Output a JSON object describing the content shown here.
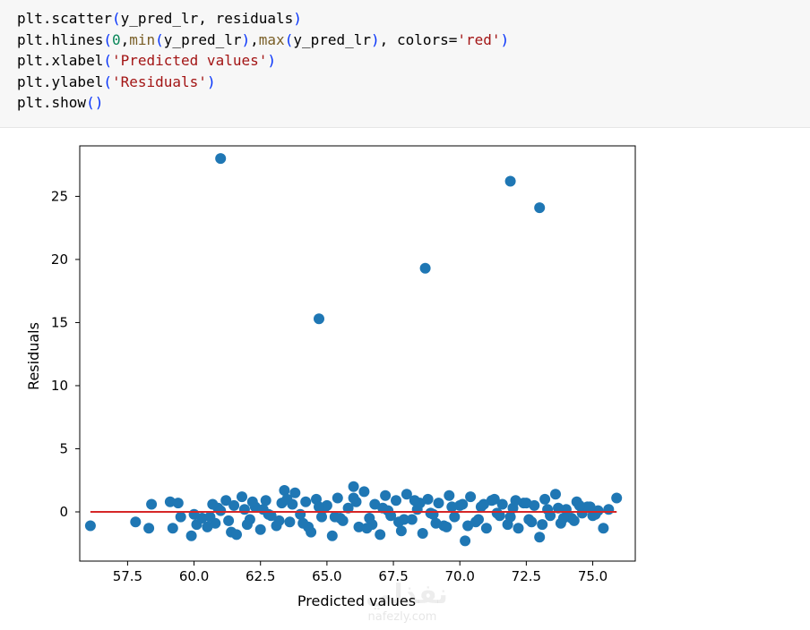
{
  "code_lines": [
    [
      {
        "t": "plt.scatter",
        "c": "fn"
      },
      {
        "t": "(",
        "c": "par"
      },
      {
        "t": "y_pred_lr, residuals",
        "c": "fn"
      },
      {
        "t": ")",
        "c": "par"
      }
    ],
    [
      {
        "t": "plt.hlines",
        "c": "fn"
      },
      {
        "t": "(",
        "c": "par"
      },
      {
        "t": "0",
        "c": "num"
      },
      {
        "t": ",",
        "c": "fn"
      },
      {
        "t": "min",
        "c": "bi"
      },
      {
        "t": "(",
        "c": "par"
      },
      {
        "t": "y_pred_lr",
        "c": "fn"
      },
      {
        "t": ")",
        "c": "par"
      },
      {
        "t": ",",
        "c": "fn"
      },
      {
        "t": "max",
        "c": "bi"
      },
      {
        "t": "(",
        "c": "par"
      },
      {
        "t": "y_pred_lr",
        "c": "fn"
      },
      {
        "t": ")",
        "c": "par"
      },
      {
        "t": ", colors=",
        "c": "fn"
      },
      {
        "t": "'red'",
        "c": "str"
      },
      {
        "t": ")",
        "c": "par"
      }
    ],
    [
      {
        "t": "plt.xlabel",
        "c": "fn"
      },
      {
        "t": "(",
        "c": "par"
      },
      {
        "t": "'Predicted values'",
        "c": "str"
      },
      {
        "t": ")",
        "c": "par"
      }
    ],
    [
      {
        "t": "plt.ylabel",
        "c": "fn"
      },
      {
        "t": "(",
        "c": "par"
      },
      {
        "t": "'Residuals'",
        "c": "str"
      },
      {
        "t": ")",
        "c": "par"
      }
    ],
    [
      {
        "t": "plt.show",
        "c": "fn"
      },
      {
        "t": "()",
        "c": "par"
      }
    ]
  ],
  "colors": {
    "points": "#1f77b4",
    "hline": "#d62728",
    "axis": "#000000",
    "code_bg": "#f7f7f7"
  },
  "watermark": {
    "arabic": "نفذلي",
    "latin": "nafezly.com"
  },
  "chart_data": {
    "type": "scatter",
    "xlabel": "Predicted values",
    "ylabel": "Residuals",
    "xlim": [
      55.7,
      76.6
    ],
    "ylim": [
      -3.9,
      29.0
    ],
    "xticks": [
      57.5,
      60.0,
      62.5,
      65.0,
      67.5,
      70.0,
      72.5,
      75.0
    ],
    "xtick_labels": [
      "57.5",
      "60.0",
      "62.5",
      "65.0",
      "67.5",
      "70.0",
      "72.5",
      "75.0"
    ],
    "yticks": [
      0,
      5,
      10,
      15,
      20,
      25
    ],
    "ytick_labels": [
      "0",
      "5",
      "10",
      "15",
      "20",
      "25"
    ],
    "grid": false,
    "hline": {
      "y": 0,
      "xmin": 56.1,
      "xmax": 75.9,
      "color": "red"
    },
    "series": [
      {
        "x": [
          56.1,
          57.8,
          58.3,
          58.4,
          59.1,
          59.2,
          59.4,
          59.5,
          59.9,
          60.0,
          60.1,
          60.3,
          60.5,
          60.8,
          60.9,
          61.0,
          61.2,
          61.4,
          61.6,
          61.8,
          61.9,
          62.1,
          62.3,
          62.5,
          62.7,
          62.9,
          63.1,
          63.3,
          63.4,
          63.6,
          63.8,
          64.0,
          64.2,
          64.4,
          64.6,
          64.8,
          65.0,
          65.2,
          65.4,
          65.6,
          65.8,
          66.0,
          66.2,
          66.4,
          66.6,
          66.8,
          67.0,
          67.2,
          67.4,
          67.6,
          67.8,
          68.0,
          68.2,
          68.4,
          68.6,
          68.8,
          69.0,
          69.2,
          69.4,
          69.6,
          69.8,
          70.0,
          70.2,
          70.4,
          70.6,
          70.8,
          71.0,
          71.2,
          71.4,
          71.6,
          71.8,
          72.0,
          72.2,
          72.4,
          72.6,
          72.8,
          73.0,
          73.2,
          73.4,
          73.6,
          73.8,
          74.0,
          74.2,
          74.4,
          74.6,
          74.8,
          75.0,
          75.2,
          75.4,
          75.6,
          75.9,
          61.0,
          64.7,
          68.7,
          71.9,
          73.0,
          60.6,
          61.5,
          62.0,
          62.6,
          63.2,
          63.7,
          64.3,
          64.9,
          65.5,
          66.1,
          66.7,
          67.3,
          67.9,
          68.5,
          69.1,
          69.7,
          70.3,
          70.9,
          71.5,
          72.1,
          72.7,
          73.3,
          73.9,
          74.5,
          75.1,
          60.7,
          61.3,
          62.2,
          62.8,
          63.5,
          64.1,
          64.7,
          65.3,
          66.0,
          66.5,
          67.1,
          67.7,
          68.3,
          68.9,
          69.5,
          70.1,
          70.7,
          71.3,
          71.9,
          72.5,
          73.1,
          73.7,
          74.3,
          74.9
        ],
        "y": [
          -1.1,
          -0.8,
          -1.3,
          0.6,
          0.8,
          -1.3,
          0.7,
          -0.4,
          -1.9,
          -0.2,
          -1.0,
          -0.5,
          -1.2,
          -0.9,
          0.3,
          0.1,
          0.9,
          -1.6,
          -1.8,
          1.2,
          0.2,
          -0.6,
          0.4,
          -1.4,
          0.9,
          -0.3,
          -1.1,
          0.7,
          1.7,
          -0.8,
          1.5,
          -0.2,
          0.8,
          -1.6,
          1.0,
          -0.4,
          0.5,
          -1.9,
          1.1,
          -0.7,
          0.3,
          2.0,
          -1.2,
          1.6,
          -0.5,
          0.6,
          -1.8,
          1.3,
          -0.3,
          0.9,
          -1.5,
          1.4,
          -0.6,
          0.2,
          -1.7,
          1.0,
          -0.2,
          0.7,
          -1.1,
          1.3,
          -0.4,
          0.5,
          -2.3,
          1.2,
          -0.8,
          0.4,
          -1.3,
          0.9,
          -0.1,
          0.6,
          -1.0,
          0.3,
          -1.3,
          0.7,
          -0.6,
          0.5,
          -2.0,
          1.0,
          -0.3,
          1.4,
          -0.9,
          0.2,
          -0.5,
          0.8,
          -0.1,
          0.4,
          -0.3,
          0.1,
          -1.3,
          0.2,
          1.1,
          28.0,
          15.3,
          19.3,
          26.2,
          24.1,
          -0.4,
          0.5,
          -1.0,
          0.2,
          -0.7,
          0.6,
          -1.2,
          0.3,
          -0.5,
          0.8,
          -1.0,
          0.1,
          -0.6,
          0.7,
          -0.9,
          0.4,
          -1.1,
          0.6,
          -0.3,
          0.9,
          -0.8,
          0.2,
          -0.5,
          0.5,
          -0.2,
          0.6,
          -0.7,
          0.8,
          -0.2,
          1.0,
          -0.9,
          0.4,
          -0.4,
          1.1,
          -1.3,
          0.3,
          -0.8,
          0.9,
          -0.1,
          -1.2,
          0.6,
          -0.6,
          1.0,
          -0.4,
          0.7,
          -1.0,
          0.3,
          -0.7,
          0.4
        ]
      }
    ]
  }
}
